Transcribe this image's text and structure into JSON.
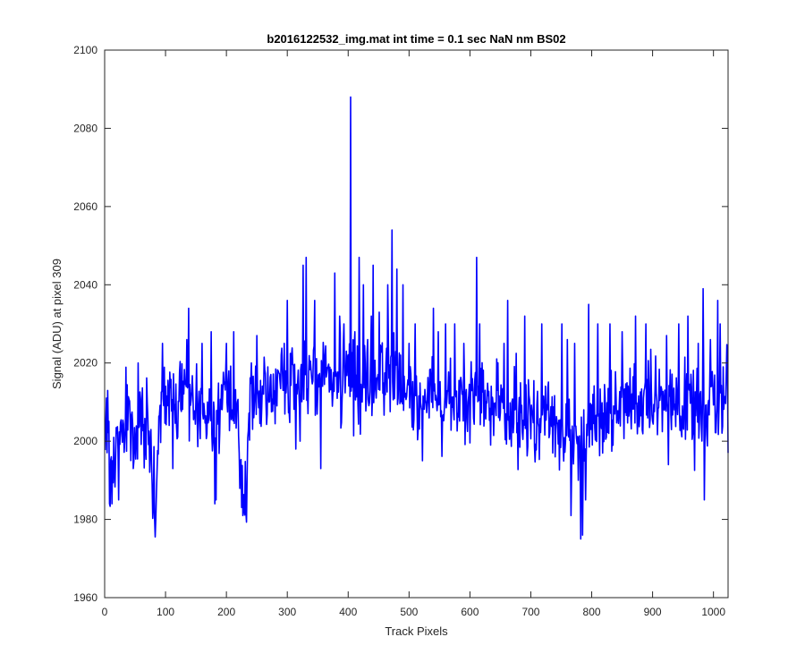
{
  "chart_data": {
    "type": "line",
    "title": "b2016122532_img.mat int time = 0.1 sec  NaN nm BS02",
    "xlabel": "Track Pixels",
    "ylabel": "Signal (ADU) at pixel 309",
    "xlim": [
      0,
      1024
    ],
    "ylim": [
      1960,
      2100
    ],
    "xticks": [
      "0",
      "100",
      "200",
      "300",
      "400",
      "500",
      "600",
      "700",
      "800",
      "900",
      "1000"
    ],
    "yticks": [
      "1960",
      "1980",
      "2000",
      "2020",
      "2040",
      "2060",
      "2080",
      "2100"
    ],
    "grid": false,
    "series": [
      {
        "color": "#0000ff",
        "x_start": 1,
        "x_step": 1,
        "anchors": [
          [
            1,
            2004
          ],
          [
            5,
            2010
          ],
          [
            10,
            1994
          ],
          [
            15,
            1985
          ],
          [
            20,
            2005
          ],
          [
            30,
            2004
          ],
          [
            40,
            2007
          ],
          [
            50,
            2000
          ],
          [
            60,
            2008
          ],
          [
            70,
            2006
          ],
          [
            84,
            1980
          ],
          [
            90,
            2008
          ],
          [
            100,
            2010
          ],
          [
            120,
            2009
          ],
          [
            138,
            2014
          ],
          [
            150,
            2010
          ],
          [
            170,
            2007
          ],
          [
            180,
            2003
          ],
          [
            200,
            2009
          ],
          [
            215,
            2011
          ],
          [
            227,
            1981
          ],
          [
            240,
            2012
          ],
          [
            260,
            2013
          ],
          [
            280,
            2014
          ],
          [
            300,
            2015
          ],
          [
            320,
            2016
          ],
          [
            340,
            2015
          ],
          [
            360,
            2016
          ],
          [
            380,
            2015
          ],
          [
            395,
            2017
          ],
          [
            404,
            2018
          ],
          [
            420,
            2016
          ],
          [
            440,
            2016
          ],
          [
            460,
            2017
          ],
          [
            472,
            2018
          ],
          [
            490,
            2015
          ],
          [
            510,
            2013
          ],
          [
            530,
            2012
          ],
          [
            550,
            2011
          ],
          [
            570,
            2011
          ],
          [
            590,
            2010
          ],
          [
            610,
            2012
          ],
          [
            630,
            2010
          ],
          [
            650,
            2008
          ],
          [
            670,
            2007
          ],
          [
            690,
            2006
          ],
          [
            710,
            2005
          ],
          [
            730,
            2006
          ],
          [
            750,
            2004
          ],
          [
            770,
            2003
          ],
          [
            783,
            2000
          ],
          [
            800,
            2005
          ],
          [
            820,
            2007
          ],
          [
            840,
            2008
          ],
          [
            860,
            2009
          ],
          [
            880,
            2009
          ],
          [
            900,
            2009
          ],
          [
            920,
            2008
          ],
          [
            940,
            2009
          ],
          [
            960,
            2009
          ],
          [
            980,
            2008
          ],
          [
            1000,
            2010
          ],
          [
            1010,
            2011
          ],
          [
            1024,
            2011
          ]
        ],
        "noise_amplitude": 7.5,
        "spikes": [
          [
            8,
            1984
          ],
          [
            12,
            1984
          ],
          [
            15,
            2001
          ],
          [
            23,
            1985
          ],
          [
            47,
            1993
          ],
          [
            55,
            2020
          ],
          [
            78,
            1989
          ],
          [
            84,
            1980
          ],
          [
            95,
            2025
          ],
          [
            112,
            1993
          ],
          [
            135,
            2026
          ],
          [
            138,
            2034
          ],
          [
            160,
            2025
          ],
          [
            175,
            2028
          ],
          [
            181,
            1984
          ],
          [
            183,
            1985
          ],
          [
            200,
            2025
          ],
          [
            212,
            2028
          ],
          [
            227,
            1981
          ],
          [
            250,
            2027
          ],
          [
            295,
            2025
          ],
          [
            300,
            2036
          ],
          [
            314,
            1998
          ],
          [
            326,
            2045
          ],
          [
            331,
            2047
          ],
          [
            345,
            2036
          ],
          [
            355,
            1993
          ],
          [
            367,
            2019
          ],
          [
            378,
            2043
          ],
          [
            386,
            2032
          ],
          [
            393,
            2030
          ],
          [
            404,
            2088
          ],
          [
            411,
            2028
          ],
          [
            418,
            2047
          ],
          [
            425,
            2040
          ],
          [
            432,
            2026
          ],
          [
            441,
            2045
          ],
          [
            451,
            2033
          ],
          [
            465,
            2040
          ],
          [
            472,
            2054
          ],
          [
            480,
            2044
          ],
          [
            490,
            2040
          ],
          [
            500,
            2025
          ],
          [
            510,
            2030
          ],
          [
            522,
            1995
          ],
          [
            540,
            2034
          ],
          [
            548,
            2028
          ],
          [
            560,
            2030
          ],
          [
            575,
            2030
          ],
          [
            590,
            2025
          ],
          [
            604,
            2016
          ],
          [
            611,
            2047
          ],
          [
            616,
            2030
          ],
          [
            634,
            1999
          ],
          [
            656,
            2025
          ],
          [
            662,
            2036
          ],
          [
            690,
            2032
          ],
          [
            718,
            2030
          ],
          [
            740,
            1996
          ],
          [
            751,
            2030
          ],
          [
            760,
            2026
          ],
          [
            766,
            1981
          ],
          [
            772,
            2025
          ],
          [
            778,
            1990
          ],
          [
            782,
            1975
          ],
          [
            785,
            1976
          ],
          [
            790,
            1985
          ],
          [
            795,
            2035
          ],
          [
            810,
            2030
          ],
          [
            830,
            2030
          ],
          [
            850,
            2028
          ],
          [
            872,
            2032
          ],
          [
            889,
            2030
          ],
          [
            923,
            2027
          ],
          [
            943,
            2030
          ],
          [
            958,
            2032
          ],
          [
            975,
            2025
          ],
          [
            985,
            1985
          ],
          [
            983,
            2039
          ],
          [
            995,
            2026
          ],
          [
            1007,
            2036
          ],
          [
            1011,
            2030
          ],
          [
            1024,
            1997
          ]
        ]
      }
    ]
  }
}
